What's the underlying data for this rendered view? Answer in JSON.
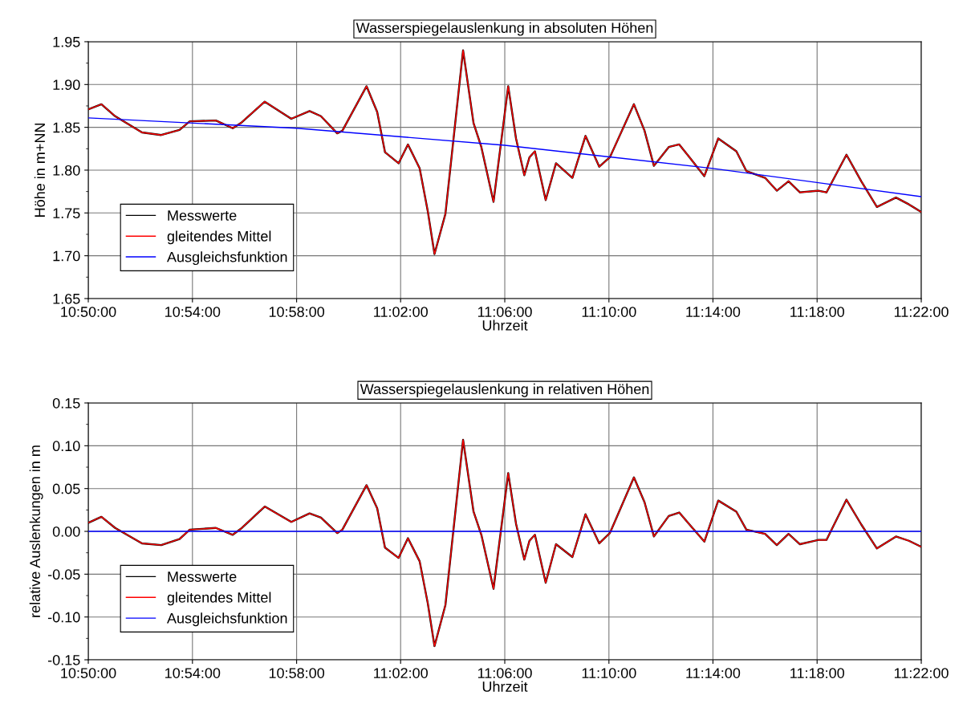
{
  "chart_data": [
    {
      "type": "line",
      "title": "Wasserspiegelauslenkung in absoluten Höhen",
      "xlabel": "Uhrzeit",
      "ylabel": "Höhe in m+NN",
      "xlim": [
        10.8333,
        11.3667
      ],
      "xticks": [
        {
          "value": 10.8333,
          "label": "10:50:00"
        },
        {
          "value": 10.9,
          "label": "10:54:00"
        },
        {
          "value": 10.9667,
          "label": "10:58:00"
        },
        {
          "value": 11.0333,
          "label": "11:02:00"
        },
        {
          "value": 11.1,
          "label": "11:06:00"
        },
        {
          "value": 11.1667,
          "label": "11:10:00"
        },
        {
          "value": 11.2333,
          "label": "11:14:00"
        },
        {
          "value": 11.3,
          "label": "11:18:00"
        },
        {
          "value": 11.3667,
          "label": "11:22:00"
        }
      ],
      "ylim": [
        1.65,
        1.95
      ],
      "yticks": [
        {
          "value": 1.65,
          "label": "1.65"
        },
        {
          "value": 1.7,
          "label": "1.70"
        },
        {
          "value": 1.75,
          "label": "1.75"
        },
        {
          "value": 1.8,
          "label": "1.80"
        },
        {
          "value": 1.85,
          "label": "1.85"
        },
        {
          "value": 1.9,
          "label": "1.90"
        },
        {
          "value": 1.95,
          "label": "1.95"
        }
      ],
      "grid": true,
      "legend": "bottom left",
      "series": [
        {
          "name": "Messwerte",
          "color": "#000000",
          "x": [
            10.8333,
            10.8417,
            10.8505,
            10.8677,
            10.88,
            10.8917,
            10.8983,
            10.915,
            10.9258,
            10.931,
            10.9463,
            10.9633,
            10.975,
            10.9823,
            10.9927,
            10.996,
            11.0115,
            11.0183,
            11.0233,
            11.032,
            11.038,
            11.0455,
            11.0507,
            11.055,
            11.062,
            11.0733,
            11.08,
            11.085,
            11.0928,
            11.1022,
            11.1072,
            11.1125,
            11.1158,
            11.1193,
            11.1262,
            11.1328,
            11.1433,
            11.1517,
            11.1605,
            11.1673,
            11.1827,
            11.1895,
            11.1955,
            11.205,
            11.2117,
            11.2183,
            11.2278,
            11.2367,
            11.2483,
            11.2547,
            11.2667,
            11.2742,
            11.2817,
            11.289,
            11.3008,
            11.306,
            11.3188,
            11.3283,
            11.3383,
            11.3505,
            11.3588,
            11.3667
          ],
          "values": [
            1.871,
            1.877,
            1.863,
            1.844,
            1.841,
            1.847,
            1.857,
            1.858,
            1.849,
            1.855,
            1.88,
            1.86,
            1.869,
            1.863,
            1.843,
            1.846,
            1.898,
            1.868,
            1.821,
            1.808,
            1.83,
            1.802,
            1.752,
            1.702,
            1.749,
            1.94,
            1.855,
            1.827,
            1.763,
            1.898,
            1.837,
            1.794,
            1.815,
            1.822,
            1.765,
            1.808,
            1.791,
            1.84,
            1.804,
            1.815,
            1.877,
            1.846,
            1.805,
            1.827,
            1.83,
            1.815,
            1.793,
            1.837,
            1.822,
            1.799,
            1.791,
            1.776,
            1.787,
            1.774,
            1.776,
            1.774,
            1.818,
            1.787,
            1.757,
            1.768,
            1.76,
            1.751
          ]
        },
        {
          "name": "gleitendes Mittel",
          "color": "#ff0000",
          "x": [
            10.8333,
            10.8417,
            10.8505,
            10.8677,
            10.88,
            10.8917,
            10.8983,
            10.915,
            10.9258,
            10.931,
            10.9463,
            10.9633,
            10.975,
            10.9823,
            10.9927,
            10.996,
            11.0115,
            11.0183,
            11.0233,
            11.032,
            11.038,
            11.0455,
            11.0507,
            11.055,
            11.062,
            11.0733,
            11.08,
            11.085,
            11.0928,
            11.1022,
            11.1072,
            11.1125,
            11.1158,
            11.1193,
            11.1262,
            11.1328,
            11.1433,
            11.1517,
            11.1605,
            11.1673,
            11.1827,
            11.1895,
            11.1955,
            11.205,
            11.2117,
            11.2183,
            11.2278,
            11.2367,
            11.2483,
            11.2547,
            11.2667,
            11.2742,
            11.2817,
            11.289,
            11.3008,
            11.306,
            11.3188,
            11.3283,
            11.3383,
            11.3505,
            11.3588,
            11.3667
          ],
          "values": [
            1.871,
            1.877,
            1.863,
            1.844,
            1.841,
            1.847,
            1.857,
            1.858,
            1.849,
            1.855,
            1.88,
            1.86,
            1.869,
            1.863,
            1.843,
            1.846,
            1.898,
            1.868,
            1.821,
            1.808,
            1.83,
            1.802,
            1.752,
            1.702,
            1.749,
            1.94,
            1.855,
            1.827,
            1.763,
            1.898,
            1.837,
            1.794,
            1.815,
            1.822,
            1.765,
            1.808,
            1.791,
            1.84,
            1.804,
            1.815,
            1.877,
            1.846,
            1.805,
            1.827,
            1.83,
            1.815,
            1.793,
            1.837,
            1.822,
            1.799,
            1.791,
            1.776,
            1.787,
            1.774,
            1.776,
            1.774,
            1.818,
            1.787,
            1.757,
            1.768,
            1.76,
            1.751
          ]
        },
        {
          "name": "Ausgleichsfunktion",
          "color": "#0000ff",
          "x": [
            10.8333,
            10.9667,
            11.1,
            11.2333,
            11.3667
          ],
          "values": [
            1.861,
            1.849,
            1.829,
            1.802,
            1.769
          ]
        }
      ]
    },
    {
      "type": "line",
      "title": "Wasserspiegelauslenkung in relativen Höhen",
      "xlabel": "Uhrzeit",
      "ylabel": "relative Auslenkungen in m",
      "xlim": [
        10.8333,
        11.3667
      ],
      "xticks": [
        {
          "value": 10.8333,
          "label": "10:50:00"
        },
        {
          "value": 10.9,
          "label": "10:54:00"
        },
        {
          "value": 10.9667,
          "label": "10:58:00"
        },
        {
          "value": 11.0333,
          "label": "11:02:00"
        },
        {
          "value": 11.1,
          "label": "11:06:00"
        },
        {
          "value": 11.1667,
          "label": "11:10:00"
        },
        {
          "value": 11.2333,
          "label": "11:14:00"
        },
        {
          "value": 11.3,
          "label": "11:18:00"
        },
        {
          "value": 11.3667,
          "label": "11:22:00"
        }
      ],
      "ylim": [
        -0.15,
        0.15
      ],
      "yticks": [
        {
          "value": -0.15,
          "label": "-0.15"
        },
        {
          "value": -0.1,
          "label": "-0.10"
        },
        {
          "value": -0.05,
          "label": "-0.05"
        },
        {
          "value": 0,
          "label": "0.00"
        },
        {
          "value": 0.05,
          "label": "0.05"
        },
        {
          "value": 0.1,
          "label": "0.10"
        },
        {
          "value": 0.15,
          "label": "0.15"
        }
      ],
      "grid": true,
      "legend": "bottom left",
      "series": [
        {
          "name": "Messwerte",
          "color": "#000000",
          "x": [
            10.8333,
            10.8417,
            10.8505,
            10.8677,
            10.88,
            10.8917,
            10.8983,
            10.915,
            10.9258,
            10.931,
            10.9463,
            10.9633,
            10.975,
            10.9823,
            10.9927,
            10.996,
            11.0115,
            11.0183,
            11.0233,
            11.032,
            11.038,
            11.0455,
            11.0507,
            11.055,
            11.062,
            11.0733,
            11.08,
            11.085,
            11.0928,
            11.1022,
            11.1072,
            11.1125,
            11.1158,
            11.1193,
            11.1262,
            11.1328,
            11.1433,
            11.1517,
            11.1605,
            11.1673,
            11.1827,
            11.1895,
            11.1955,
            11.205,
            11.2117,
            11.2183,
            11.2278,
            11.2367,
            11.2483,
            11.2547,
            11.2667,
            11.2742,
            11.2817,
            11.289,
            11.3008,
            11.306,
            11.3188,
            11.3283,
            11.3383,
            11.3505,
            11.3588,
            11.3667
          ],
          "values": [
            0.01,
            0.017,
            0.004,
            -0.014,
            -0.016,
            -0.009,
            0.002,
            0.004,
            -0.004,
            0.003,
            0.029,
            0.011,
            0.021,
            0.016,
            -0.002,
            0.002,
            0.054,
            0.027,
            -0.019,
            -0.031,
            -0.008,
            -0.035,
            -0.084,
            -0.134,
            -0.086,
            0.107,
            0.023,
            -0.004,
            -0.067,
            0.068,
            0.009,
            -0.033,
            -0.011,
            -0.004,
            -0.06,
            -0.015,
            -0.03,
            0.02,
            -0.014,
            -0.002,
            0.063,
            0.034,
            -0.006,
            0.018,
            0.022,
            0.008,
            -0.012,
            0.036,
            0.023,
            0.002,
            -0.003,
            -0.016,
            -0.003,
            -0.015,
            -0.01,
            -0.01,
            0.037,
            0.008,
            -0.02,
            -0.006,
            -0.011,
            -0.018
          ]
        },
        {
          "name": "gleitendes Mittel",
          "color": "#ff0000",
          "x": [
            10.8333,
            10.8417,
            10.8505,
            10.8677,
            10.88,
            10.8917,
            10.8983,
            10.915,
            10.9258,
            10.931,
            10.9463,
            10.9633,
            10.975,
            10.9823,
            10.9927,
            10.996,
            11.0115,
            11.0183,
            11.0233,
            11.032,
            11.038,
            11.0455,
            11.0507,
            11.055,
            11.062,
            11.0733,
            11.08,
            11.085,
            11.0928,
            11.1022,
            11.1072,
            11.1125,
            11.1158,
            11.1193,
            11.1262,
            11.1328,
            11.1433,
            11.1517,
            11.1605,
            11.1673,
            11.1827,
            11.1895,
            11.1955,
            11.205,
            11.2117,
            11.2183,
            11.2278,
            11.2367,
            11.2483,
            11.2547,
            11.2667,
            11.2742,
            11.2817,
            11.289,
            11.3008,
            11.306,
            11.3188,
            11.3283,
            11.3383,
            11.3505,
            11.3588,
            11.3667
          ],
          "values": [
            0.01,
            0.017,
            0.004,
            -0.014,
            -0.016,
            -0.009,
            0.002,
            0.004,
            -0.004,
            0.003,
            0.029,
            0.011,
            0.021,
            0.016,
            -0.002,
            0.002,
            0.054,
            0.027,
            -0.019,
            -0.031,
            -0.008,
            -0.035,
            -0.084,
            -0.134,
            -0.086,
            0.107,
            0.023,
            -0.004,
            -0.067,
            0.068,
            0.009,
            -0.033,
            -0.011,
            -0.004,
            -0.06,
            -0.015,
            -0.03,
            0.02,
            -0.014,
            -0.002,
            0.063,
            0.034,
            -0.006,
            0.018,
            0.022,
            0.008,
            -0.012,
            0.036,
            0.023,
            0.002,
            -0.003,
            -0.016,
            -0.003,
            -0.015,
            -0.01,
            -0.01,
            0.037,
            0.008,
            -0.02,
            -0.006,
            -0.011,
            -0.018
          ]
        },
        {
          "name": "Ausgleichsfunktion",
          "color": "#0000ff",
          "x": [
            10.8333,
            11.3667
          ],
          "values": [
            0,
            0
          ]
        }
      ]
    }
  ]
}
